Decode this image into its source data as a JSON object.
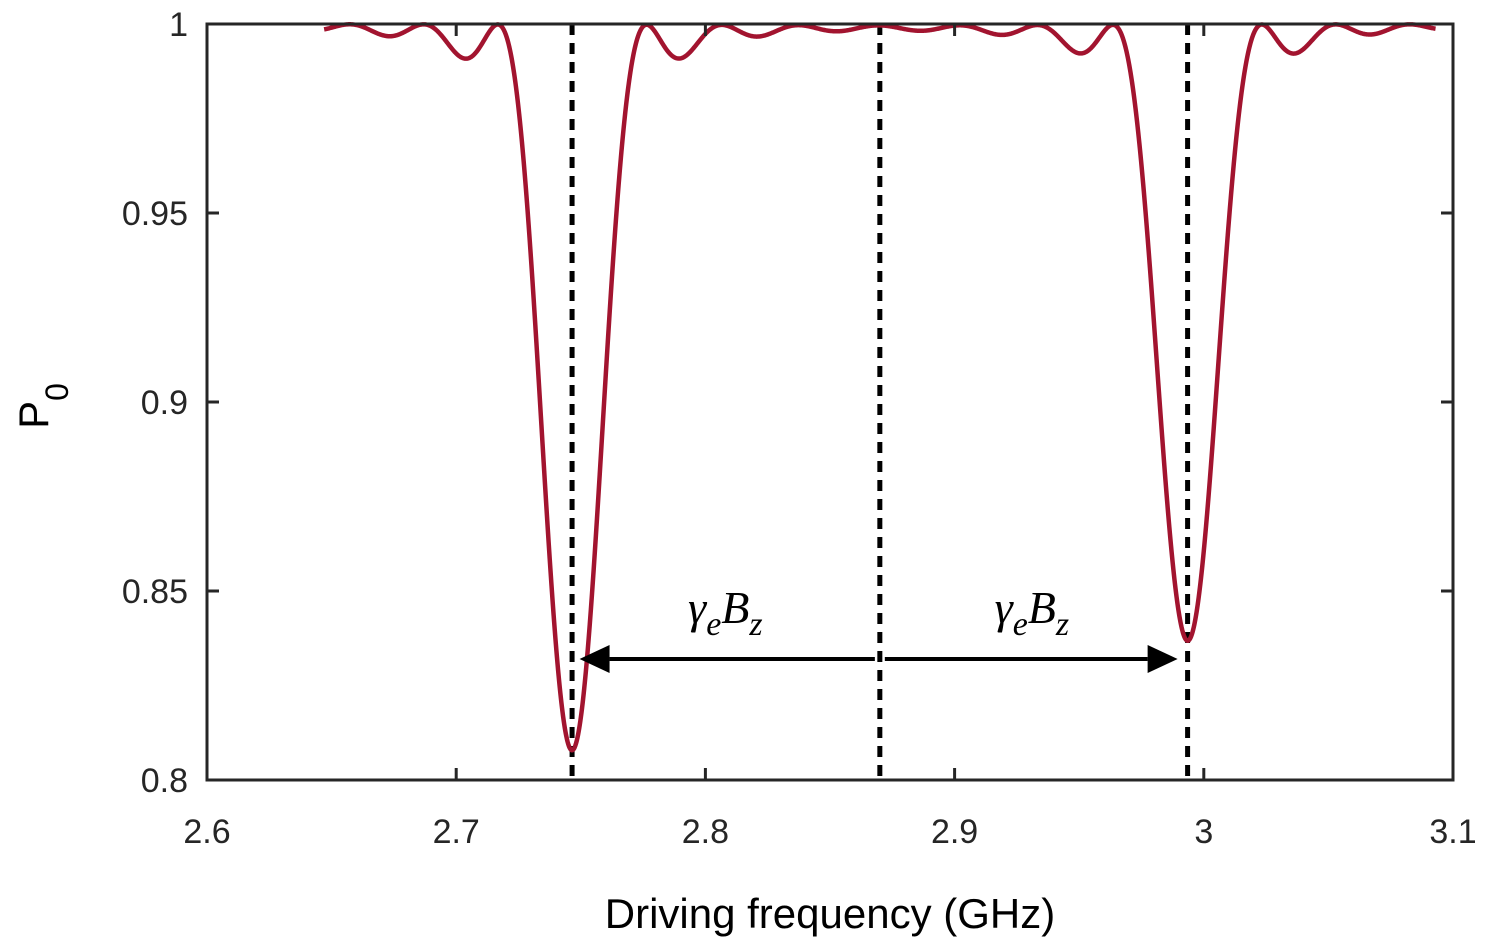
{
  "chart_data": {
    "type": "line",
    "xlabel": "Driving frequency (GHz)",
    "ylabel_main": "P",
    "ylabel_sub": "0",
    "xlim": [
      2.6,
      3.1
    ],
    "ylim": [
      0.8,
      1.0
    ],
    "xticks": [
      "2.6",
      "2.7",
      "2.8",
      "2.9",
      "3",
      "3.1"
    ],
    "yticks": [
      "0.8",
      "0.85",
      "0.9",
      "0.95",
      "1"
    ],
    "grid": false,
    "line_color": "#A2142F",
    "x_range": [
      2.647,
      3.093
    ],
    "dips": [
      {
        "center": 2.7465,
        "min": 0.808
      },
      {
        "center": 2.9935,
        "min": 0.837
      }
    ],
    "vlines": [
      2.7465,
      2.87,
      2.9935
    ],
    "arrows": [
      {
        "from": 2.868,
        "to": 2.7495,
        "y": 0.832
      },
      {
        "from": 2.872,
        "to": 2.9895,
        "y": 0.832
      }
    ],
    "annotations": [
      {
        "symbol": "γ",
        "sub1": "e",
        "letter": "B",
        "sub2": "z",
        "x": 2.808,
        "y": 0.8415
      },
      {
        "symbol": "γ",
        "sub1": "e",
        "letter": "B",
        "sub2": "z",
        "x": 2.931,
        "y": 0.8415
      }
    ]
  }
}
